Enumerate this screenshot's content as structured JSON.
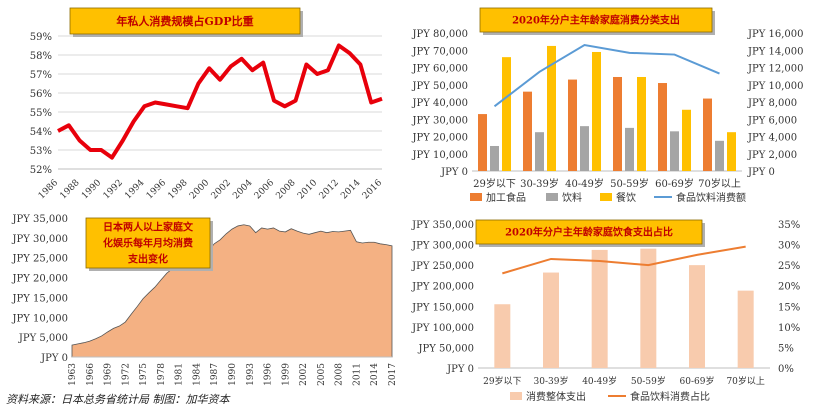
{
  "source_note": "资料来源：日本总务省统计局   制图：加华资本",
  "chart_data": [
    {
      "type": "line",
      "title": "年私人消费规模占GDP比重",
      "x": [
        1986,
        1987,
        1988,
        1989,
        1990,
        1991,
        1992,
        1993,
        1994,
        1995,
        1996,
        1997,
        1998,
        1999,
        2000,
        2001,
        2002,
        2003,
        2004,
        2005,
        2006,
        2007,
        2008,
        2009,
        2010,
        2011,
        2012,
        2013,
        2014,
        2015,
        2016
      ],
      "x_ticks": [
        "1986",
        "1988",
        "1990",
        "1992",
        "1994",
        "1996",
        "1998",
        "2000",
        "2002",
        "2004",
        "2006",
        "2008",
        "2010",
        "2012",
        "2014",
        "2016"
      ],
      "series": [
        {
          "values": [
            54.0,
            54.3,
            53.5,
            53.0,
            53.0,
            52.6,
            53.5,
            54.5,
            55.3,
            55.5,
            55.4,
            55.3,
            55.2,
            56.5,
            57.3,
            56.7,
            57.4,
            57.8,
            57.2,
            57.6,
            55.6,
            55.3,
            55.6,
            57.5,
            57.0,
            57.2,
            58.5,
            58.1,
            57.5,
            55.5,
            55.7
          ]
        }
      ],
      "ylim": [
        52,
        59
      ],
      "y_ticks": [
        "52%",
        "53%",
        "54%",
        "55%",
        "56%",
        "57%",
        "58%",
        "59%"
      ],
      "color": "#e8000b",
      "grid": true
    },
    {
      "type": "bar",
      "title": "2020年分户主年龄家庭消费分类支出",
      "categories": [
        "29岁以下",
        "30-39岁",
        "40-49岁",
        "50-59岁",
        "60-69岁",
        "70岁以上"
      ],
      "series": [
        {
          "name": "加工食品",
          "values": [
            33000,
            46000,
            53000,
            54500,
            51000,
            42000
          ],
          "color": "#ed7d31",
          "axis": "left"
        },
        {
          "name": "饮料",
          "values": [
            14500,
            22500,
            26000,
            25000,
            23000,
            17500
          ],
          "color": "#a5a5a5",
          "axis": "left"
        },
        {
          "name": "餐饮",
          "values": [
            66000,
            72500,
            69000,
            54500,
            35500,
            22500
          ],
          "color": "#ffc000",
          "axis": "left"
        },
        {
          "name": "食品饮料消费额",
          "values": [
            7500,
            11500,
            14600,
            13700,
            13500,
            11300
          ],
          "color": "#5b9bd5",
          "axis": "right",
          "type": "line"
        }
      ],
      "ylim_left": [
        0,
        80000
      ],
      "ylim_right": [
        0,
        16000
      ],
      "y_ticks_left": [
        "JPY 0",
        "JPY 10,000",
        "JPY 20,000",
        "JPY 30,000",
        "JPY 40,000",
        "JPY 50,000",
        "JPY 60,000",
        "JPY 70,000",
        "JPY 80,000"
      ],
      "y_ticks_right": [
        "JPY 0",
        "JPY 2,000",
        "JPY 4,000",
        "JPY 6,000",
        "JPY 8,000",
        "JPY 10,000",
        "JPY 12,000",
        "JPY 14,000",
        "JPY 16,000"
      ],
      "legend": "bottom"
    },
    {
      "type": "area",
      "title": "日本两人以上家庭文化娱乐每年月均消费支出变化",
      "title_lines": [
        "日本两人以上家庭文",
        "化娱乐每年月均消费",
        "支出变化"
      ],
      "x": [
        1963,
        1964,
        1965,
        1966,
        1967,
        1968,
        1969,
        1970,
        1971,
        1972,
        1973,
        1974,
        1975,
        1976,
        1977,
        1978,
        1979,
        1980,
        1981,
        1982,
        1983,
        1984,
        1985,
        1986,
        1987,
        1988,
        1989,
        1990,
        1991,
        1992,
        1993,
        1994,
        1995,
        1996,
        1997,
        1998,
        1999,
        2000,
        2001,
        2002,
        2003,
        2004,
        2005,
        2006,
        2007,
        2008,
        2009,
        2010,
        2011,
        2012,
        2013,
        2014,
        2015,
        2016,
        2017
      ],
      "x_ticks": [
        "1963",
        "1966",
        "1969",
        "1972",
        "1975",
        "1978",
        "1981",
        "1984",
        "1987",
        "1990",
        "1993",
        "1996",
        "1999",
        "2002",
        "2005",
        "2008",
        "2011",
        "2014",
        "2017"
      ],
      "values": [
        3000,
        3300,
        3600,
        4000,
        4600,
        5300,
        6300,
        7200,
        7800,
        8800,
        10800,
        12700,
        14700,
        16200,
        17600,
        19400,
        21100,
        22300,
        23100,
        24200,
        24700,
        25600,
        25900,
        26600,
        28500,
        29500,
        31000,
        32200,
        33000,
        33300,
        33000,
        31300,
        32500,
        32200,
        32500,
        31700,
        31500,
        32300,
        31700,
        31200,
        30900,
        31300,
        31700,
        31300,
        31600,
        31500,
        31700,
        31900,
        29000,
        28700,
        28900,
        28900,
        28500,
        28300,
        28000
      ],
      "ylim": [
        0,
        35000
      ],
      "y_ticks": [
        "JPY 0",
        "JPY 5,000",
        "JPY 10,000",
        "JPY 15,000",
        "JPY 20,000",
        "JPY 25,000",
        "JPY 30,000",
        "JPY 35,000"
      ],
      "color": "#f4b183"
    },
    {
      "type": "bar",
      "title": "2020年分户主年龄家庭饮食支出占比",
      "categories": [
        "29岁以下",
        "30-39岁",
        "40-49岁",
        "50-59岁",
        "60-69岁",
        "70岁以上"
      ],
      "series": [
        {
          "name": "消费整体支出",
          "values": [
            155000,
            232000,
            287000,
            290000,
            250000,
            188000
          ],
          "color": "#f8cbad",
          "axis": "left"
        },
        {
          "name": "食品饮料消费占比",
          "values": [
            23,
            26.5,
            26,
            25,
            27.5,
            29.5
          ],
          "color": "#ed7d31",
          "axis": "right",
          "type": "line"
        }
      ],
      "ylim_left": [
        0,
        350000
      ],
      "ylim_right": [
        0,
        35
      ],
      "y_ticks_left": [
        "JPY 0",
        "JPY 50,000",
        "JPY 100,000",
        "JPY 150,000",
        "JPY 200,000",
        "JPY 250,000",
        "JPY 300,000",
        "JPY 350,000"
      ],
      "y_ticks_right": [
        "0%",
        "5%",
        "10%",
        "15%",
        "20%",
        "25%",
        "30%",
        "35%"
      ],
      "legend": "bottom"
    }
  ]
}
